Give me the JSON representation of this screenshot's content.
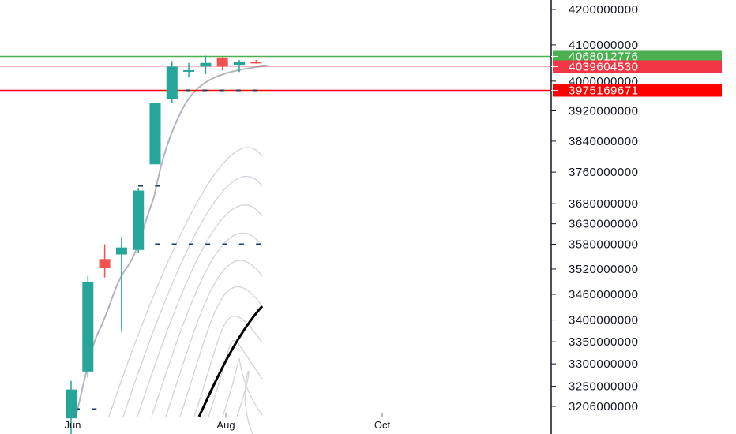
{
  "chart_data": {
    "type": "candlestick",
    "y_ticks": [
      4200000000,
      4100000000,
      4000000000,
      3920000000,
      3840000000,
      3760000000,
      3680000000,
      3630000000,
      3580000000,
      3520000000,
      3460000000,
      3400000000,
      3350000000,
      3300000000,
      3250000000,
      3206000000
    ],
    "y_tick_labels": [
      "4200000000",
      "4100000000",
      "4000000000",
      "3920000000",
      "3840000000",
      "3760000000",
      "3680000000",
      "3630000000",
      "3580000000",
      "3520000000",
      "3460000000",
      "3400000000",
      "3350000000",
      "3300000000",
      "3250000000",
      "3206000000"
    ],
    "x_labels": [
      "Jun",
      "Aug",
      "Oct"
    ],
    "candles": [
      {
        "o": 3180000000,
        "h": 3262000000,
        "l": 3140000000,
        "c": 3243000000
      },
      {
        "o": 3283000000,
        "h": 3504000000,
        "l": 3270000000,
        "c": 3490000000
      },
      {
        "o": 3544000000,
        "h": 3580000000,
        "l": 3500000000,
        "c": 3523000000
      },
      {
        "o": 3555000000,
        "h": 3598000000,
        "l": 3373000000,
        "c": 3572000000
      },
      {
        "o": 3566000000,
        "h": 3720000000,
        "l": 3560000000,
        "c": 3713000000
      },
      {
        "o": 3780000000,
        "h": 3942000000,
        "l": 3780000000,
        "c": 3940000000
      },
      {
        "o": 3951000000,
        "h": 4055000000,
        "l": 3941000000,
        "c": 4040000000
      },
      {
        "o": 4030000000,
        "h": 4050000000,
        "l": 4010000000,
        "c": 4030000000
      },
      {
        "o": 4040000000,
        "h": 4070000000,
        "l": 4019000000,
        "c": 4050000000
      },
      {
        "o": 4065000000,
        "h": 4066000000,
        "l": 4030000000,
        "c": 4040000000
      },
      {
        "o": 4045000000,
        "h": 4058000000,
        "l": 4025000000,
        "c": 4054000000
      },
      {
        "o": 4053000000,
        "h": 4058000000,
        "l": 4048000000,
        "c": 4050000000
      }
    ],
    "price_lines": [
      {
        "value": 4068012776,
        "label": "4068012776",
        "color": "#4caf50"
      },
      {
        "value": 4039604530,
        "label": "4039604530",
        "color": "#f23645"
      },
      {
        "value": 3975169671,
        "label": "3975169671",
        "color": "#ff0000"
      }
    ],
    "dotted_levels": [
      3975169671,
      3725000000,
      3580000000,
      3200000000
    ],
    "colors": {
      "up": "#26a69a",
      "down": "#ef5350",
      "ma_line": "#b2b5be",
      "fan_line": "#d1d4dc",
      "thick_line": "#000000",
      "dots": "#1e3a5f"
    }
  }
}
